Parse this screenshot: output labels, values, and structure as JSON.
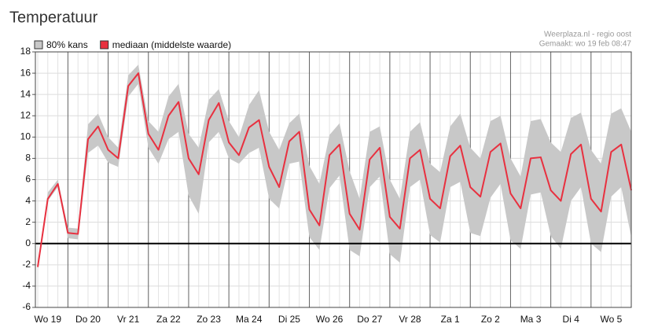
{
  "chart_data": {
    "type": "line",
    "title": "Temperatuur",
    "source": "Weerplaza.nl - regio oost",
    "created": "Gemaakt: wo 19 feb 08:47",
    "categories": [
      null,
      "Wo 19",
      null,
      null,
      null,
      "Do 20",
      null,
      null,
      null,
      "Vr 21",
      null,
      null,
      null,
      "Za 22",
      null,
      null,
      null,
      "Zo 23",
      null,
      null,
      null,
      "Ma 24",
      null,
      null,
      null,
      "Di 25",
      null,
      null,
      null,
      "Wo 26",
      null,
      null,
      null,
      "Do 27",
      null,
      null,
      null,
      "Vr 28",
      null,
      null,
      null,
      "Za 1",
      null,
      null,
      null,
      "Zo 2",
      null,
      null,
      null,
      "Ma 3",
      null,
      null,
      null,
      "Di 4",
      null,
      null,
      null,
      "Wo 5",
      null,
      null
    ],
    "band": {
      "name": "80% kans",
      "color": "#c8c8c8",
      "low": [
        -2.5,
        4.0,
        5.3,
        0.5,
        0.4,
        8.5,
        9.2,
        7.6,
        7.2,
        13.8,
        15.0,
        9.0,
        7.5,
        9.8,
        10.5,
        4.5,
        2.8,
        9.5,
        10.5,
        8.0,
        7.5,
        8.5,
        9.0,
        4.2,
        3.3,
        7.5,
        7.7,
        0.6,
        -0.6,
        5.2,
        6.4,
        -0.6,
        -1.2,
        5.3,
        6.3,
        -1.0,
        -1.8,
        5.3,
        6.0,
        0.8,
        0.1,
        5.3,
        5.8,
        1.0,
        0.7,
        4.3,
        5.6,
        0.3,
        -0.5,
        4.6,
        4.8,
        0.7,
        -0.5,
        4.0,
        5.3,
        0.0,
        -0.8,
        4.4,
        5.3,
        0.6
      ],
      "high": [
        -2.0,
        4.8,
        6.0,
        1.5,
        1.4,
        11.2,
        12.2,
        10.0,
        9.0,
        15.8,
        16.8,
        11.5,
        10.5,
        13.8,
        15.0,
        10.3,
        9.0,
        13.5,
        14.5,
        11.5,
        10.0,
        13.0,
        14.4,
        10.5,
        8.8,
        11.3,
        12.2,
        7.3,
        5.6,
        10.2,
        11.3,
        6.8,
        4.2,
        10.5,
        11.0,
        6.0,
        4.2,
        10.5,
        11.4,
        7.5,
        6.7,
        11.0,
        12.2,
        9.0,
        8.0,
        11.5,
        12.0,
        8.0,
        6.3,
        11.5,
        11.7,
        9.5,
        8.6,
        11.8,
        12.3,
        8.8,
        7.5,
        12.2,
        12.7,
        10.5
      ]
    },
    "series": [
      {
        "name": "mediaan (middelste waarde)",
        "color": "#e8303f",
        "values": [
          -2.2,
          4.2,
          5.6,
          1.0,
          0.9,
          9.8,
          11.0,
          8.8,
          8.0,
          14.8,
          16.0,
          10.3,
          8.8,
          12.0,
          13.3,
          8.0,
          6.5,
          11.6,
          13.2,
          9.5,
          8.3,
          10.9,
          11.6,
          7.2,
          5.3,
          9.6,
          10.5,
          3.2,
          1.7,
          8.3,
          9.3,
          2.8,
          1.3,
          7.9,
          9.0,
          2.5,
          1.4,
          8.0,
          8.8,
          4.2,
          3.3,
          8.2,
          9.2,
          5.3,
          4.4,
          8.6,
          9.4,
          4.7,
          3.3,
          8.0,
          8.1,
          5.0,
          4.0,
          8.4,
          9.3,
          4.2,
          3.0,
          8.6,
          9.3,
          5.0
        ]
      }
    ],
    "ylim": [
      -6,
      18
    ],
    "yticks": [
      -6,
      -4,
      -2,
      0,
      2,
      4,
      6,
      8,
      10,
      12,
      14,
      16,
      18
    ],
    "grid": true
  }
}
